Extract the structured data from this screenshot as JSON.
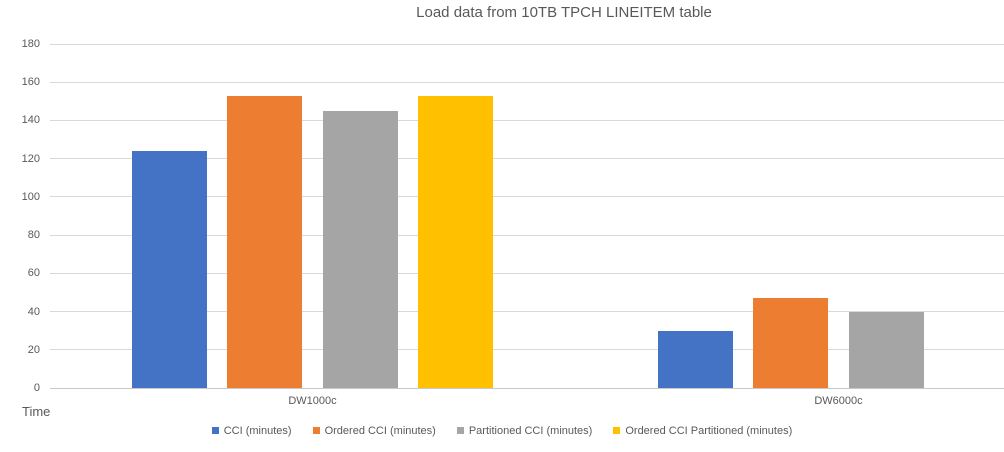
{
  "title": "Load data from 10TB TPCH LINEITEM table",
  "axis_title": "Time",
  "colors": {
    "series_blue": "#4472C4",
    "series_orange": "#ED7D31",
    "series_gray": "#A5A5A5",
    "series_yellow": "#FFC000",
    "gridline": "#D9D9D9",
    "text": "#595959"
  },
  "chart_data": {
    "type": "bar",
    "title": "Load data from 10TB TPCH LINEITEM table",
    "categories": [
      "DW1000c",
      "DW6000c"
    ],
    "series": [
      {
        "name": "CCI (minutes)",
        "color": "#4472C4",
        "values": [
          124,
          30
        ]
      },
      {
        "name": "Ordered CCI (minutes)",
        "color": "#ED7D31",
        "values": [
          153,
          47
        ]
      },
      {
        "name": "Partitioned CCI (minutes)",
        "color": "#A5A5A5",
        "values": [
          145,
          40
        ]
      },
      {
        "name": "Ordered CCI Partitioned (minutes)",
        "color": "#FFC000",
        "values": [
          153,
          null
        ]
      }
    ],
    "xlabel": "",
    "ylabel": "Time",
    "ylim": [
      0,
      180
    ],
    "ytick_step": 20,
    "yticks": [
      0,
      20,
      40,
      60,
      80,
      100,
      120,
      140,
      160,
      180
    ],
    "grid": true,
    "legend_position": "bottom"
  }
}
